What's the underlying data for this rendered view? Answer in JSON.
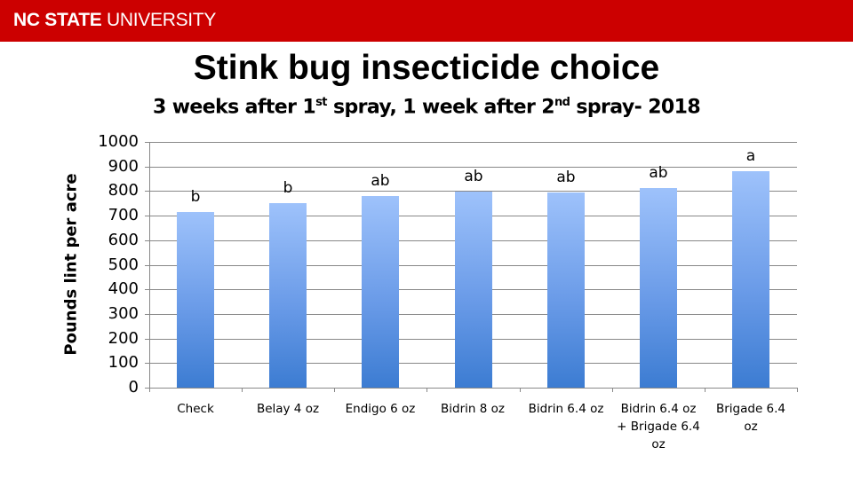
{
  "header": {
    "brand_bold": "NC STATE",
    "brand_light": "UNIVERSITY",
    "brand_color": "#cc0000"
  },
  "slide": {
    "title": "Stink bug insecticide choice",
    "subtitle_part1": "3 weeks after 1",
    "subtitle_sup1": "st",
    "subtitle_part2": " spray, 1 week after 2",
    "subtitle_sup2": "nd",
    "subtitle_part3": " spray- 2018"
  },
  "chart_data": {
    "type": "bar",
    "title": "Stink bug insecticide choice",
    "subtitle": "3 weeks after 1st spray, 1 week after 2nd spray- 2018",
    "xlabel": "",
    "ylabel": "Pounds lint per acre",
    "ylim": [
      0,
      1000
    ],
    "yticks": [
      0,
      100,
      200,
      300,
      400,
      500,
      600,
      700,
      800,
      900,
      1000
    ],
    "grid": true,
    "legend": null,
    "categories": [
      "Check",
      "Belay 4 oz",
      "Endigo 6 oz",
      "Bidrin 8 oz",
      "Bidrin 6.4 oz",
      "Bidrin 6.4 oz + Brigade 6.4 oz",
      "Brigade 6.4 oz"
    ],
    "category_label_lines": [
      [
        "Check"
      ],
      [
        "Belay 4 oz"
      ],
      [
        "Endigo 6 oz"
      ],
      [
        "Bidrin 8 oz"
      ],
      [
        "Bidrin 6.4 oz"
      ],
      [
        "Bidrin 6.4 oz",
        "+ Brigade 6.4",
        "oz"
      ],
      [
        "Brigade 6.4",
        "oz"
      ]
    ],
    "values": [
      715,
      752,
      778,
      797,
      795,
      812,
      880
    ],
    "annotations": [
      "b",
      "b",
      "ab",
      "ab",
      "ab",
      "ab",
      "a"
    ],
    "bar_color_top": "#9ec2fb",
    "bar_color_bottom": "#3c7cd2"
  }
}
